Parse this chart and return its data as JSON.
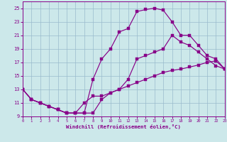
{
  "xlabel": "Windchill (Refroidissement éolien,°C)",
  "bg_color": "#cce8ea",
  "line_color": "#880088",
  "grid_color": "#99bbcc",
  "xlim": [
    0,
    23
  ],
  "ylim": [
    9,
    26
  ],
  "yticks": [
    9,
    11,
    13,
    15,
    17,
    19,
    21,
    23,
    25
  ],
  "xticks": [
    0,
    1,
    2,
    3,
    4,
    5,
    6,
    7,
    8,
    9,
    10,
    11,
    12,
    13,
    14,
    15,
    16,
    17,
    18,
    19,
    20,
    21,
    22,
    23
  ],
  "curve_peak_x": [
    0,
    1,
    2,
    3,
    4,
    5,
    6,
    7,
    8,
    9,
    10,
    11,
    12,
    13,
    14,
    15,
    16,
    17,
    18,
    19,
    20,
    21,
    22,
    23
  ],
  "curve_peak_y": [
    13,
    11.5,
    11,
    10.5,
    10,
    9.5,
    9.5,
    9.5,
    14.5,
    17.5,
    19.0,
    21.5,
    22.0,
    24.5,
    24.8,
    25.0,
    24.7,
    23.0,
    21.0,
    21.0,
    19.5,
    18.0,
    17.5,
    16.0
  ],
  "curve_mid_x": [
    0,
    1,
    2,
    3,
    4,
    5,
    6,
    7,
    8,
    9,
    10,
    11,
    12,
    13,
    14,
    15,
    16,
    17,
    18,
    19,
    20,
    21,
    22,
    23
  ],
  "curve_mid_y": [
    13,
    11.5,
    11,
    10.5,
    10,
    9.5,
    9.5,
    9.5,
    9.5,
    11.5,
    12.5,
    13.0,
    14.5,
    17.5,
    18.0,
    18.5,
    19.0,
    21.0,
    20.0,
    19.5,
    18.5,
    17.5,
    16.5,
    16.0
  ],
  "curve_low_x": [
    0,
    1,
    2,
    3,
    4,
    5,
    6,
    7,
    8,
    9,
    10,
    11,
    12,
    13,
    14,
    15,
    16,
    17,
    18,
    19,
    20,
    21,
    22,
    23
  ],
  "curve_low_y": [
    13,
    11.5,
    11,
    10.5,
    10,
    9.5,
    9.5,
    11.0,
    12.0,
    12.0,
    12.5,
    13.0,
    13.5,
    14.0,
    14.5,
    15.0,
    15.5,
    15.8,
    16.0,
    16.3,
    16.6,
    17.0,
    17.2,
    16.0
  ]
}
